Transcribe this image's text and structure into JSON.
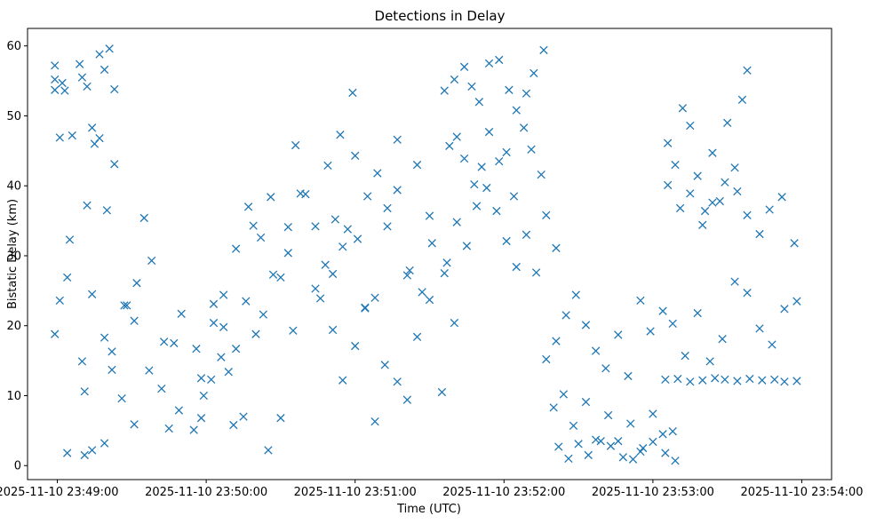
{
  "chart_data": {
    "type": "scatter",
    "title": "Detections in Delay",
    "xlabel": "Time (UTC)",
    "ylabel": "Bistatic Delay (km)",
    "marker": "x",
    "color": "#1f77b4",
    "grid": false,
    "legend": "none",
    "x_range": [
      "2025-11-10 23:48:48",
      "2025-11-10 23:54:12"
    ],
    "y_range": [
      -2.0,
      62.5
    ],
    "x_ticks": [
      "2025-11-10 23:49:00",
      "2025-11-10 23:50:00",
      "2025-11-10 23:51:00",
      "2025-11-10 23:52:00",
      "2025-11-10 23:53:00",
      "2025-11-10 23:54:00"
    ],
    "y_ticks": [
      0,
      10,
      20,
      30,
      40,
      50,
      60
    ],
    "series": [
      {
        "x": [
          "2025-11-10 23:48:59",
          "2025-11-10 23:48:59",
          "2025-11-10 23:49:01",
          "2025-11-10 23:49:03",
          "2025-11-10 23:49:06",
          "2025-11-10 23:49:09",
          "2025-11-10 23:49:12",
          "2025-11-10 23:49:14",
          "2025-11-10 23:49:15",
          "2025-11-10 23:49:17",
          "2025-11-10 23:49:19",
          "2025-11-10 23:49:21",
          "2025-11-10 23:49:23",
          "2025-11-10 23:48:59",
          "2025-11-10 23:49:02",
          "2025-11-10 23:49:04",
          "2025-11-10 23:49:10",
          "2025-11-10 23:49:12",
          "2025-11-10 23:49:17",
          "2025-11-10 23:49:20",
          "2025-11-10 23:49:23",
          "2025-11-10 23:49:28",
          "2025-11-10 23:49:32",
          "2025-11-10 23:49:35",
          "2025-11-10 23:48:59",
          "2025-11-10 23:49:01",
          "2025-11-10 23:49:05",
          "2025-11-10 23:49:10",
          "2025-11-10 23:49:14",
          "2025-11-10 23:49:19",
          "2025-11-10 23:49:22",
          "2025-11-10 23:49:26",
          "2025-11-10 23:49:31",
          "2025-11-10 23:49:38",
          "2025-11-10 23:49:43",
          "2025-11-10 23:49:47",
          "2025-11-10 23:49:50",
          "2025-11-10 23:49:04",
          "2025-11-10 23:49:11",
          "2025-11-10 23:49:11",
          "2025-11-10 23:49:14",
          "2025-11-10 23:49:19",
          "2025-11-10 23:49:22",
          "2025-11-10 23:49:27",
          "2025-11-10 23:49:31",
          "2025-11-10 23:49:37",
          "2025-11-10 23:49:42",
          "2025-11-10 23:49:45",
          "2025-11-10 23:49:49",
          "2025-11-10 23:49:55",
          "2025-11-10 23:49:58",
          "2025-11-10 23:50:03",
          "2025-11-10 23:50:07",
          "2025-11-10 23:50:11",
          "2025-11-10 23:50:15",
          "2025-11-10 23:50:20",
          "2025-11-10 23:50:25",
          "2025-11-10 23:50:30",
          "2025-11-10 23:50:35",
          "2025-11-10 23:49:56",
          "2025-11-10 23:49:59",
          "2025-11-10 23:50:02",
          "2025-11-10 23:50:06",
          "2025-11-10 23:50:09",
          "2025-11-10 23:50:12",
          "2025-11-10 23:50:16",
          "2025-11-10 23:50:19",
          "2025-11-10 23:50:23",
          "2025-11-10 23:50:26",
          "2025-11-10 23:50:30",
          "2025-11-10 23:50:33",
          "2025-11-10 23:50:36",
          "2025-11-10 23:50:40",
          "2025-11-10 23:49:58",
          "2025-11-10 23:50:03",
          "2025-11-10 23:50:07",
          "2025-11-10 23:50:12",
          "2025-11-10 23:50:17",
          "2025-11-10 23:50:22",
          "2025-11-10 23:50:27",
          "2025-11-10 23:50:33",
          "2025-11-10 23:50:38",
          "2025-11-10 23:50:44",
          "2025-11-10 23:50:49",
          "2025-11-10 23:50:54",
          "2025-11-10 23:50:59",
          "2025-11-10 23:50:44",
          "2025-11-10 23:50:48",
          "2025-11-10 23:50:52",
          "2025-11-10 23:50:57",
          "2025-11-10 23:51:01",
          "2025-11-10 23:51:05",
          "2025-11-10 23:51:09",
          "2025-11-10 23:51:13",
          "2025-11-10 23:51:17",
          "2025-11-10 23:51:21",
          "2025-11-10 23:51:25",
          "2025-11-10 23:51:30",
          "2025-11-10 23:50:46",
          "2025-11-10 23:50:51",
          "2025-11-10 23:50:55",
          "2025-11-10 23:51:00",
          "2025-11-10 23:51:04",
          "2025-11-10 23:51:08",
          "2025-11-10 23:51:13",
          "2025-11-10 23:51:17",
          "2025-11-10 23:51:22",
          "2025-11-10 23:51:27",
          "2025-11-10 23:51:31",
          "2025-11-10 23:51:36",
          "2025-11-10 23:50:51",
          "2025-11-10 23:50:55",
          "2025-11-10 23:51:00",
          "2025-11-10 23:51:04",
          "2025-11-10 23:51:08",
          "2025-11-10 23:51:12",
          "2025-11-10 23:51:17",
          "2025-11-10 23:51:21",
          "2025-11-10 23:51:25",
          "2025-11-10 23:51:30",
          "2025-11-10 23:51:35",
          "2025-11-10 23:51:40",
          "2025-11-10 23:51:36",
          "2025-11-10 23:51:40",
          "2025-11-10 23:51:44",
          "2025-11-10 23:51:47",
          "2025-11-10 23:51:50",
          "2025-11-10 23:51:54",
          "2025-11-10 23:51:58",
          "2025-11-10 23:52:02",
          "2025-11-10 23:52:05",
          "2025-11-10 23:52:09",
          "2025-11-10 23:52:12",
          "2025-11-10 23:52:16",
          "2025-11-10 23:51:38",
          "2025-11-10 23:51:41",
          "2025-11-10 23:51:44",
          "2025-11-10 23:51:48",
          "2025-11-10 23:51:51",
          "2025-11-10 23:51:54",
          "2025-11-10 23:51:58",
          "2025-11-10 23:52:01",
          "2025-11-10 23:52:04",
          "2025-11-10 23:52:08",
          "2025-11-10 23:52:11",
          "2025-11-10 23:52:15",
          "2025-11-10 23:51:37",
          "2025-11-10 23:51:41",
          "2025-11-10 23:51:45",
          "2025-11-10 23:51:49",
          "2025-11-10 23:51:53",
          "2025-11-10 23:51:57",
          "2025-11-10 23:52:01",
          "2025-11-10 23:52:05",
          "2025-11-10 23:52:09",
          "2025-11-10 23:52:13",
          "2025-11-10 23:52:17",
          "2025-11-10 23:52:21",
          "2025-11-10 23:52:17",
          "2025-11-10 23:52:21",
          "2025-11-10 23:52:25",
          "2025-11-10 23:52:29",
          "2025-11-10 23:52:33",
          "2025-11-10 23:52:37",
          "2025-11-10 23:52:41",
          "2025-11-10 23:52:46",
          "2025-11-10 23:52:50",
          "2025-11-10 23:52:55",
          "2025-11-10 23:52:59",
          "2025-11-10 23:53:04",
          "2025-11-10 23:52:20",
          "2025-11-10 23:52:24",
          "2025-11-10 23:52:28",
          "2025-11-10 23:52:33",
          "2025-11-10 23:52:37",
          "2025-11-10 23:52:42",
          "2025-11-10 23:52:46",
          "2025-11-10 23:52:51",
          "2025-11-10 23:52:55",
          "2025-11-10 23:53:00",
          "2025-11-10 23:53:04",
          "2025-11-10 23:53:08",
          "2025-11-10 23:52:22",
          "2025-11-10 23:52:26",
          "2025-11-10 23:52:30",
          "2025-11-10 23:52:34",
          "2025-11-10 23:52:39",
          "2025-11-10 23:52:43",
          "2025-11-10 23:52:48",
          "2025-11-10 23:52:52",
          "2025-11-10 23:52:56",
          "2025-11-10 23:53:00",
          "2025-11-10 23:53:05",
          "2025-11-10 23:53:09",
          "2025-11-10 23:53:06",
          "2025-11-10 23:53:11",
          "2025-11-10 23:53:15",
          "2025-11-10 23:53:20",
          "2025-11-10 23:53:24",
          "2025-11-10 23:53:29",
          "2025-11-10 23:53:34",
          "2025-11-10 23:53:38",
          "2025-11-10 23:53:43",
          "2025-11-10 23:53:47",
          "2025-11-10 23:53:52",
          "2025-11-10 23:53:57",
          "2025-11-10 23:53:08",
          "2025-11-10 23:53:13",
          "2025-11-10 23:53:18",
          "2025-11-10 23:53:23",
          "2025-11-10 23:53:28",
          "2025-11-10 23:53:33",
          "2025-11-10 23:53:38",
          "2025-11-10 23:53:43",
          "2025-11-10 23:53:48",
          "2025-11-10 23:53:53",
          "2025-11-10 23:53:58",
          "2025-11-10 23:53:05",
          "2025-11-10 23:53:10",
          "2025-11-10 23:53:15",
          "2025-11-10 23:53:20",
          "2025-11-10 23:53:25",
          "2025-11-10 23:53:29",
          "2025-11-10 23:53:34",
          "2025-11-10 23:53:39",
          "2025-11-10 23:53:44",
          "2025-11-10 23:53:49",
          "2025-11-10 23:53:53",
          "2025-11-10 23:53:58",
          "2025-11-10 23:53:06",
          "2025-11-10 23:53:09",
          "2025-11-10 23:53:12",
          "2025-11-10 23:53:15",
          "2025-11-10 23:53:18",
          "2025-11-10 23:53:21",
          "2025-11-10 23:53:24",
          "2025-11-10 23:53:27",
          "2025-11-10 23:53:30",
          "2025-11-10 23:53:33",
          "2025-11-10 23:53:36",
          "2025-11-10 23:53:38"
        ],
        "y": [
          55.2,
          57.2,
          46.9,
          53.6,
          47.2,
          57.4,
          54.2,
          48.3,
          46.0,
          58.8,
          56.6,
          59.6,
          53.8,
          53.7,
          54.7,
          26.9,
          55.5,
          37.2,
          46.8,
          36.5,
          43.1,
          22.9,
          26.1,
          35.4,
          18.8,
          23.6,
          32.3,
          14.9,
          24.5,
          18.3,
          16.3,
          9.6,
          20.7,
          29.3,
          17.7,
          17.5,
          21.7,
          1.8,
          10.6,
          1.5,
          2.2,
          3.2,
          13.7,
          22.9,
          5.9,
          13.6,
          11.0,
          5.3,
          7.9,
          5.1,
          12.5,
          23.1,
          19.8,
          5.8,
          7.0,
          18.8,
          2.2,
          6.8,
          19.3,
          16.7,
          10.0,
          12.3,
          15.5,
          13.4,
          16.7,
          23.5,
          34.3,
          21.6,
          38.4,
          26.9,
          34.1,
          45.8,
          38.8,
          6.8,
          20.4,
          24.4,
          31.0,
          37.0,
          32.6,
          27.3,
          30.4,
          38.9,
          25.3,
          42.9,
          47.3,
          53.3,
          34.2,
          28.7,
          35.2,
          33.8,
          32.4,
          38.5,
          41.8,
          36.8,
          46.6,
          27.2,
          43.0,
          35.7,
          23.9,
          27.4,
          31.3,
          44.3,
          22.5,
          24.0,
          34.2,
          39.4,
          27.9,
          24.8,
          31.8,
          27.5,
          19.4,
          12.2,
          17.1,
          22.6,
          6.3,
          14.4,
          12.0,
          9.4,
          18.4,
          23.7,
          10.5,
          20.4,
          53.6,
          55.2,
          57.0,
          54.2,
          52.0,
          57.5,
          58.0,
          53.7,
          50.8,
          53.2,
          56.1,
          59.4,
          45.7,
          47.0,
          43.9,
          40.2,
          42.7,
          47.7,
          43.5,
          44.8,
          38.5,
          48.3,
          45.2,
          41.6,
          29.0,
          34.8,
          31.4,
          37.1,
          39.7,
          36.4,
          32.1,
          28.4,
          33.0,
          27.6,
          35.8,
          31.1,
          15.2,
          17.8,
          21.5,
          24.4,
          20.1,
          16.4,
          13.9,
          18.7,
          12.8,
          23.6,
          19.2,
          22.1,
          8.3,
          10.2,
          5.7,
          9.1,
          3.7,
          7.2,
          3.5,
          6.0,
          2.0,
          7.4,
          4.5,
          4.9,
          2.7,
          1.0,
          3.1,
          1.5,
          3.5,
          2.8,
          1.2,
          0.9,
          2.5,
          3.4,
          1.8,
          0.7,
          40.1,
          36.8,
          38.9,
          34.4,
          37.6,
          40.5,
          39.2,
          35.8,
          33.1,
          36.6,
          38.4,
          31.8,
          20.3,
          15.7,
          21.8,
          14.9,
          18.1,
          26.3,
          24.7,
          19.6,
          17.3,
          22.4,
          23.5,
          12.3,
          12.4,
          12.0,
          12.2,
          12.5,
          12.3,
          12.1,
          12.4,
          12.2,
          12.3,
          12.0,
          12.1,
          46.1,
          43.0,
          51.1,
          48.6,
          41.4,
          36.4,
          44.7,
          37.8,
          49.0,
          42.6,
          52.3,
          56.5
        ]
      }
    ]
  }
}
